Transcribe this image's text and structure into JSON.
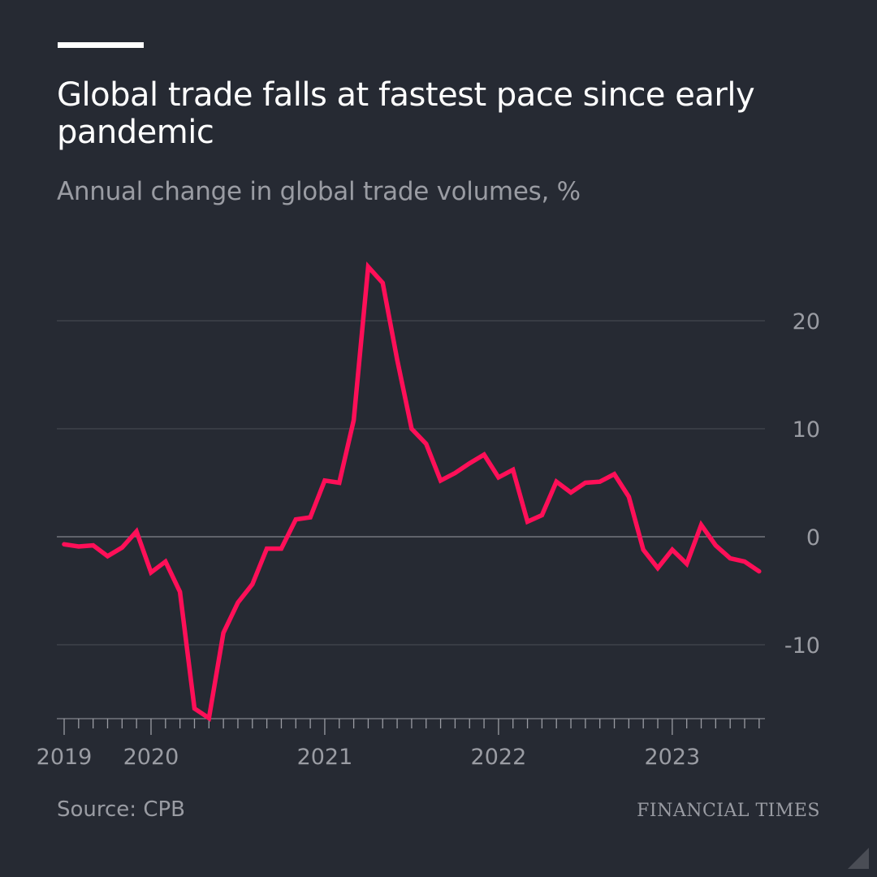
{
  "title": "Global trade falls at fastest pace since early pandemic",
  "subtitle": "Annual change in global trade volumes, %",
  "source": "Source: CPB",
  "brand": "FINANCIAL TIMES",
  "colors": {
    "background": "#262a33",
    "line": "#ff0f58",
    "grid": "#4a4d55",
    "zero_line": "#9a9ca3",
    "text": "#9a9ca3"
  },
  "chart_data": {
    "type": "line",
    "title": "Global trade falls at fastest pace since early pandemic",
    "subtitle": "Annual change in global trade volumes, %",
    "ylim": [
      -17,
      27
    ],
    "y_ticks": [
      20,
      10,
      0,
      -10
    ],
    "y_tick_labels": [
      "20",
      "10",
      "0",
      "-10"
    ],
    "y_axis_position": "right",
    "grid": true,
    "x_tick_labels": [
      {
        "label": "2019",
        "date": "2019-07"
      },
      {
        "label": "2020",
        "date": "2020-01"
      },
      {
        "label": "2021",
        "date": "2021-01"
      },
      {
        "label": "2022",
        "date": "2022-01"
      },
      {
        "label": "2023",
        "date": "2023-01"
      }
    ],
    "x": [
      "2019-07",
      "2019-08",
      "2019-09",
      "2019-10",
      "2019-11",
      "2019-12",
      "2020-01",
      "2020-02",
      "2020-03",
      "2020-04",
      "2020-05",
      "2020-06",
      "2020-07",
      "2020-08",
      "2020-09",
      "2020-10",
      "2020-11",
      "2020-12",
      "2021-01",
      "2021-02",
      "2021-03",
      "2021-04",
      "2021-05",
      "2021-06",
      "2021-07",
      "2021-08",
      "2021-09",
      "2021-10",
      "2021-11",
      "2021-12",
      "2022-01",
      "2022-02",
      "2022-03",
      "2022-04",
      "2022-05",
      "2022-06",
      "2022-07",
      "2022-08",
      "2022-09",
      "2022-10",
      "2022-11",
      "2022-12",
      "2023-01",
      "2023-02",
      "2023-03",
      "2023-04",
      "2023-05",
      "2023-06",
      "2023-07"
    ],
    "series": [
      {
        "values": [
          -0.7,
          -0.9,
          -0.8,
          -1.8,
          -1.0,
          0.5,
          -3.3,
          -2.3,
          -5.1,
          -15.9,
          -16.8,
          -8.9,
          -6.1,
          -4.4,
          -1.1,
          -1.1,
          1.6,
          1.8,
          5.2,
          5.0,
          10.8,
          25.0,
          23.5,
          16.4,
          10.0,
          8.6,
          5.2,
          5.9,
          6.8,
          7.6,
          5.5,
          6.2,
          1.4,
          2.0,
          5.1,
          4.1,
          5.0,
          5.1,
          5.8,
          3.7,
          -1.2,
          -2.9,
          -1.2,
          -2.5,
          1.1,
          -0.8,
          -2.0,
          -2.3,
          -3.2
        ]
      }
    ]
  }
}
